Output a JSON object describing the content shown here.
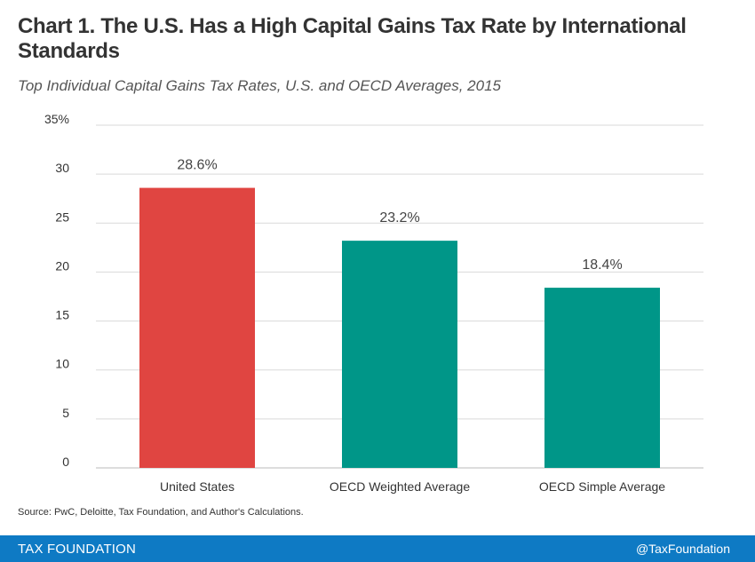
{
  "chart_data": {
    "type": "bar",
    "title": "Chart 1. The U.S. Has a High Capital Gains Tax Rate by International Standards",
    "subtitle": "Top Individual Capital Gains Tax Rates, U.S. and OECD Averages, 2015",
    "categories": [
      "United States",
      "OECD Weighted Average",
      "OECD Simple Average"
    ],
    "values": [
      28.6,
      23.2,
      18.4
    ],
    "data_labels": [
      "28.6%",
      "23.2%",
      "18.4%"
    ],
    "bar_colors": [
      "#e04541",
      "#009688",
      "#009688"
    ],
    "ylim": [
      0,
      35
    ],
    "yticks": [
      0,
      5,
      10,
      15,
      20,
      25,
      30,
      35
    ],
    "ytick_labels": [
      "0",
      "5",
      "10",
      "15",
      "20",
      "25",
      "30",
      "35%"
    ],
    "xlabel": "",
    "ylabel": "",
    "grid": true,
    "legend": "none"
  },
  "source": "Source:  PwC, Deloitte, Tax Foundation, and Author's Calculations.",
  "footer": {
    "brand": "TAX FOUNDATION",
    "handle": "@TaxFoundation",
    "color": "#0e7ac4"
  }
}
